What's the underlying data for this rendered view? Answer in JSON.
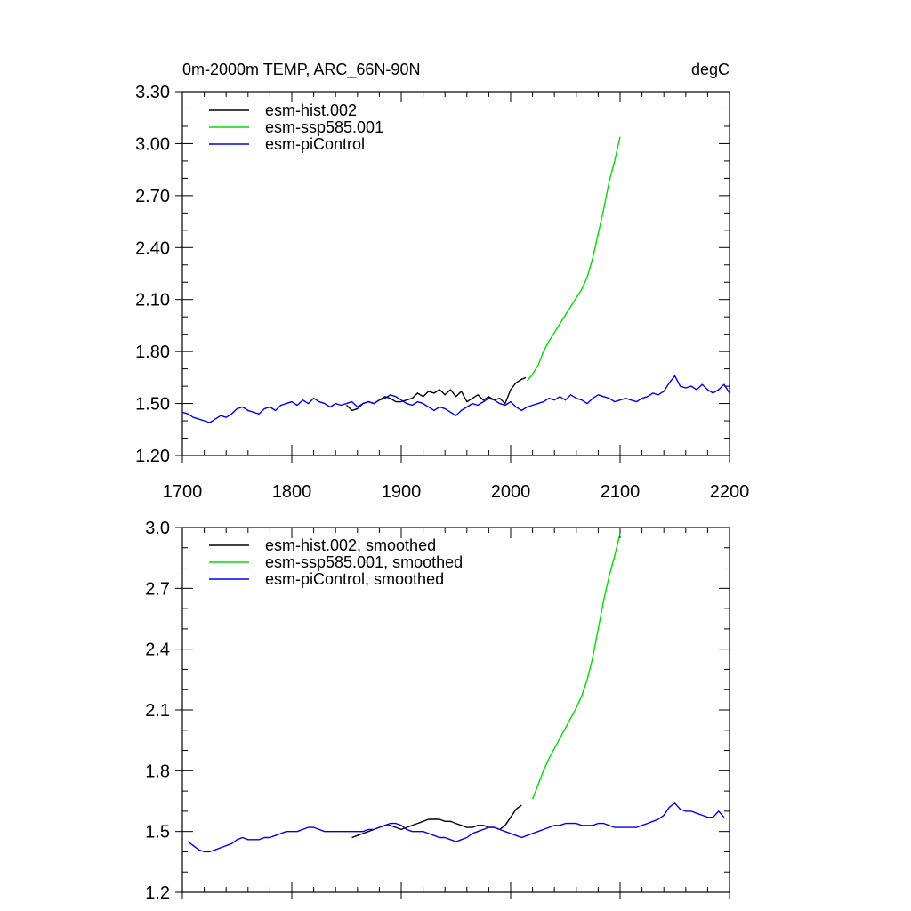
{
  "chart_data": [
    {
      "type": "line",
      "title": "0m-2000m TEMP, ARC_66N-90N",
      "units": "degC",
      "xlim": [
        1700,
        2200
      ],
      "ylim": [
        1.2,
        3.3
      ],
      "x_ticks": [
        1700,
        1800,
        1900,
        2000,
        2100,
        2200
      ],
      "x_tick_labels": [
        "1700",
        "1800",
        "1900",
        "2000",
        "2100",
        "2200"
      ],
      "y_ticks": [
        1.2,
        1.5,
        1.8,
        2.1,
        2.4,
        2.7,
        3.0,
        3.3
      ],
      "y_tick_labels": [
        "1.20",
        "1.50",
        "1.80",
        "2.10",
        "2.40",
        "2.70",
        "3.00",
        "3.30"
      ],
      "legend_placement": "top-left",
      "grid": false,
      "series": [
        {
          "name": "esm-hist.002",
          "color": "#000000",
          "x": [
            1850,
            1855,
            1860,
            1865,
            1870,
            1875,
            1880,
            1885,
            1890,
            1895,
            1900,
            1905,
            1910,
            1915,
            1920,
            1925,
            1930,
            1935,
            1940,
            1945,
            1950,
            1955,
            1960,
            1965,
            1970,
            1975,
            1980,
            1985,
            1990,
            1995,
            2000,
            2005,
            2010,
            2014
          ],
          "y": [
            1.49,
            1.46,
            1.47,
            1.5,
            1.51,
            1.5,
            1.52,
            1.54,
            1.53,
            1.51,
            1.51,
            1.52,
            1.53,
            1.56,
            1.54,
            1.57,
            1.56,
            1.58,
            1.55,
            1.58,
            1.54,
            1.57,
            1.51,
            1.53,
            1.55,
            1.52,
            1.54,
            1.52,
            1.53,
            1.5,
            1.58,
            1.62,
            1.64,
            1.65
          ]
        },
        {
          "name": "esm-ssp585.001",
          "color": "#00dd00",
          "x": [
            2015,
            2020,
            2025,
            2030,
            2035,
            2040,
            2045,
            2050,
            2055,
            2060,
            2065,
            2070,
            2075,
            2080,
            2085,
            2090,
            2095,
            2100
          ],
          "y": [
            1.63,
            1.67,
            1.72,
            1.8,
            1.86,
            1.91,
            1.96,
            2.01,
            2.06,
            2.11,
            2.16,
            2.23,
            2.34,
            2.48,
            2.62,
            2.78,
            2.9,
            3.04
          ]
        },
        {
          "name": "esm-piControl",
          "color": "#0000ee",
          "x": [
            1700,
            1705,
            1710,
            1715,
            1720,
            1725,
            1730,
            1735,
            1740,
            1745,
            1750,
            1755,
            1760,
            1765,
            1770,
            1775,
            1780,
            1785,
            1790,
            1795,
            1800,
            1805,
            1810,
            1815,
            1820,
            1825,
            1830,
            1835,
            1840,
            1845,
            1850,
            1855,
            1860,
            1865,
            1870,
            1875,
            1880,
            1885,
            1890,
            1895,
            1900,
            1905,
            1910,
            1915,
            1920,
            1925,
            1930,
            1935,
            1940,
            1945,
            1950,
            1955,
            1960,
            1965,
            1970,
            1975,
            1980,
            1985,
            1990,
            1995,
            2000,
            2005,
            2010,
            2015,
            2020,
            2025,
            2030,
            2035,
            2040,
            2045,
            2050,
            2055,
            2060,
            2065,
            2070,
            2075,
            2080,
            2085,
            2090,
            2095,
            2100,
            2105,
            2110,
            2115,
            2120,
            2125,
            2130,
            2135,
            2140,
            2145,
            2150,
            2155,
            2160,
            2165,
            2170,
            2175,
            2180,
            2185,
            2190,
            2195,
            2200
          ],
          "y": [
            1.45,
            1.44,
            1.42,
            1.41,
            1.4,
            1.39,
            1.41,
            1.43,
            1.42,
            1.44,
            1.47,
            1.48,
            1.46,
            1.45,
            1.44,
            1.47,
            1.48,
            1.46,
            1.49,
            1.5,
            1.51,
            1.49,
            1.52,
            1.5,
            1.53,
            1.51,
            1.5,
            1.48,
            1.5,
            1.49,
            1.5,
            1.51,
            1.48,
            1.5,
            1.51,
            1.5,
            1.52,
            1.53,
            1.55,
            1.54,
            1.52,
            1.5,
            1.49,
            1.51,
            1.5,
            1.48,
            1.46,
            1.48,
            1.47,
            1.45,
            1.43,
            1.46,
            1.48,
            1.5,
            1.49,
            1.51,
            1.53,
            1.52,
            1.5,
            1.49,
            1.51,
            1.48,
            1.46,
            1.48,
            1.49,
            1.5,
            1.51,
            1.53,
            1.52,
            1.54,
            1.52,
            1.55,
            1.53,
            1.52,
            1.5,
            1.53,
            1.55,
            1.54,
            1.53,
            1.51,
            1.52,
            1.53,
            1.52,
            1.51,
            1.53,
            1.54,
            1.56,
            1.55,
            1.57,
            1.62,
            1.66,
            1.6,
            1.59,
            1.6,
            1.58,
            1.61,
            1.58,
            1.56,
            1.58,
            1.61,
            1.56
          ]
        }
      ]
    },
    {
      "type": "line",
      "xlim": [
        1700,
        2200
      ],
      "ylim": [
        1.2,
        3.0
      ],
      "x_ticks": [
        1700,
        1800,
        1900,
        2000,
        2100,
        2200
      ],
      "y_ticks": [
        1.2,
        1.5,
        1.8,
        2.1,
        2.4,
        2.7,
        3.0
      ],
      "y_tick_labels": [
        "1.2",
        "1.5",
        "1.8",
        "2.1",
        "2.4",
        "2.7",
        "3.0"
      ],
      "legend_placement": "top-left",
      "grid": false,
      "series": [
        {
          "name": "esm-hist.002, smoothed",
          "color": "#000000",
          "x": [
            1855,
            1860,
            1865,
            1870,
            1875,
            1880,
            1885,
            1890,
            1895,
            1900,
            1905,
            1910,
            1915,
            1920,
            1925,
            1930,
            1935,
            1940,
            1945,
            1950,
            1955,
            1960,
            1965,
            1970,
            1975,
            1980,
            1985,
            1990,
            1995,
            2000,
            2005,
            2010
          ],
          "y": [
            1.47,
            1.48,
            1.49,
            1.5,
            1.51,
            1.52,
            1.53,
            1.53,
            1.52,
            1.51,
            1.52,
            1.53,
            1.54,
            1.55,
            1.56,
            1.56,
            1.56,
            1.55,
            1.55,
            1.54,
            1.53,
            1.52,
            1.52,
            1.53,
            1.53,
            1.52,
            1.52,
            1.51,
            1.53,
            1.57,
            1.61,
            1.63
          ]
        },
        {
          "name": "esm-ssp585.001, smoothed",
          "color": "#00dd00",
          "x": [
            2020,
            2025,
            2030,
            2035,
            2040,
            2045,
            2050,
            2055,
            2060,
            2065,
            2070,
            2075,
            2080,
            2085,
            2090,
            2095,
            2100
          ],
          "y": [
            1.66,
            1.73,
            1.8,
            1.86,
            1.91,
            1.96,
            2.01,
            2.06,
            2.11,
            2.17,
            2.25,
            2.36,
            2.5,
            2.64,
            2.76,
            2.86,
            2.97
          ]
        },
        {
          "name": "esm-piControl, smoothed",
          "color": "#0000ee",
          "x": [
            1705,
            1710,
            1715,
            1720,
            1725,
            1730,
            1735,
            1740,
            1745,
            1750,
            1755,
            1760,
            1765,
            1770,
            1775,
            1780,
            1785,
            1790,
            1795,
            1800,
            1805,
            1810,
            1815,
            1820,
            1825,
            1830,
            1835,
            1840,
            1845,
            1850,
            1855,
            1860,
            1865,
            1870,
            1875,
            1880,
            1885,
            1890,
            1895,
            1900,
            1905,
            1910,
            1915,
            1920,
            1925,
            1930,
            1935,
            1940,
            1945,
            1950,
            1955,
            1960,
            1965,
            1970,
            1975,
            1980,
            1985,
            1990,
            1995,
            2000,
            2005,
            2010,
            2015,
            2020,
            2025,
            2030,
            2035,
            2040,
            2045,
            2050,
            2055,
            2060,
            2065,
            2070,
            2075,
            2080,
            2085,
            2090,
            2095,
            2100,
            2105,
            2110,
            2115,
            2120,
            2125,
            2130,
            2135,
            2140,
            2145,
            2150,
            2155,
            2160,
            2165,
            2170,
            2175,
            2180,
            2185,
            2190,
            2195
          ],
          "y": [
            1.45,
            1.43,
            1.41,
            1.4,
            1.4,
            1.41,
            1.42,
            1.43,
            1.44,
            1.46,
            1.47,
            1.46,
            1.46,
            1.46,
            1.47,
            1.47,
            1.48,
            1.49,
            1.5,
            1.5,
            1.5,
            1.51,
            1.52,
            1.52,
            1.51,
            1.5,
            1.5,
            1.5,
            1.5,
            1.5,
            1.5,
            1.5,
            1.5,
            1.51,
            1.51,
            1.52,
            1.53,
            1.54,
            1.54,
            1.53,
            1.51,
            1.5,
            1.5,
            1.5,
            1.49,
            1.48,
            1.47,
            1.47,
            1.46,
            1.45,
            1.46,
            1.47,
            1.49,
            1.5,
            1.51,
            1.52,
            1.52,
            1.51,
            1.5,
            1.49,
            1.48,
            1.47,
            1.48,
            1.49,
            1.5,
            1.51,
            1.52,
            1.53,
            1.53,
            1.54,
            1.54,
            1.54,
            1.53,
            1.53,
            1.53,
            1.54,
            1.54,
            1.53,
            1.52,
            1.52,
            1.52,
            1.52,
            1.52,
            1.53,
            1.54,
            1.55,
            1.56,
            1.58,
            1.62,
            1.64,
            1.61,
            1.6,
            1.6,
            1.59,
            1.58,
            1.57,
            1.57,
            1.6,
            1.57
          ]
        }
      ]
    }
  ]
}
